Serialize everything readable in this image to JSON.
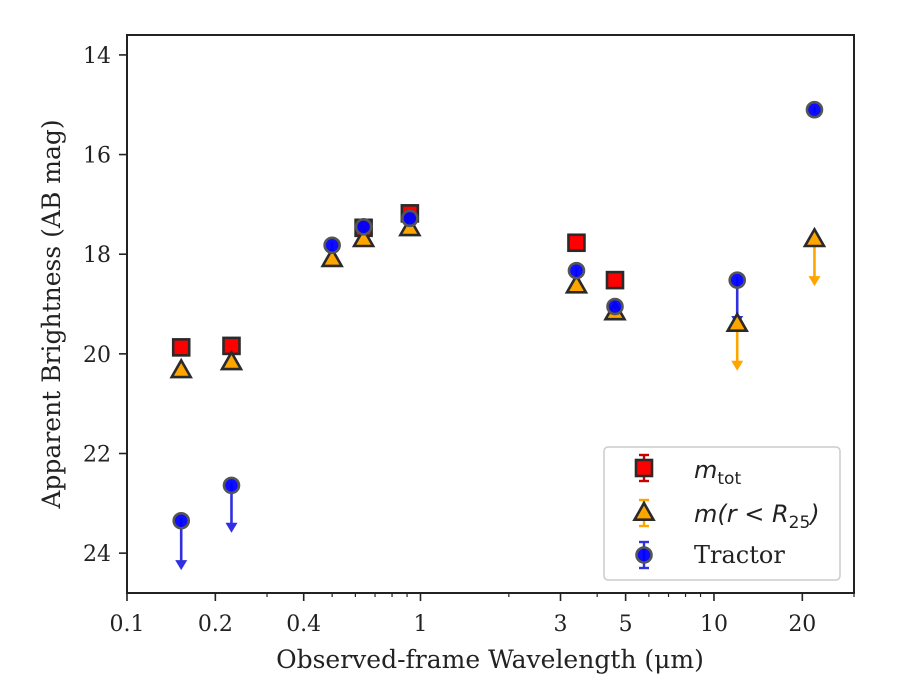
{
  "chart_data": {
    "type": "scatter",
    "xlabel": "Observed-frame Wavelength (μm)",
    "ylabel": "Apparent Brightness (AB mag)",
    "xscale": "log",
    "yinverted": true,
    "xlim": [
      0.1,
      30
    ],
    "ylim": [
      24.8,
      13.6
    ],
    "xticks": [
      {
        "value": 0.1,
        "label": "0.1"
      },
      {
        "value": 0.2,
        "label": "0.2"
      },
      {
        "value": 0.4,
        "label": "0.4"
      },
      {
        "value": 1,
        "label": "1"
      },
      {
        "value": 3,
        "label": "3"
      },
      {
        "value": 5,
        "label": "5"
      },
      {
        "value": 10,
        "label": "10"
      },
      {
        "value": 20,
        "label": "20"
      }
    ],
    "yticks": [
      {
        "value": 14,
        "label": "14"
      },
      {
        "value": 16,
        "label": "16"
      },
      {
        "value": 18,
        "label": "18"
      },
      {
        "value": 20,
        "label": "20"
      },
      {
        "value": 22,
        "label": "22"
      },
      {
        "value": 24,
        "label": "24"
      }
    ],
    "grid": false,
    "legend_position": "lower-right",
    "series": [
      {
        "name": "m_tot",
        "legend_main": "m",
        "legend_sub": "tot",
        "marker": "square",
        "face_color": "#ff0000",
        "err_color": "#cc0000",
        "points": [
          {
            "x": 0.153,
            "y": 19.87
          },
          {
            "x": 0.227,
            "y": 19.84
          },
          {
            "x": 0.64,
            "y": 17.47
          },
          {
            "x": 0.92,
            "y": 17.18
          },
          {
            "x": 3.4,
            "y": 17.77
          },
          {
            "x": 4.6,
            "y": 18.52
          }
        ]
      },
      {
        "name": "m(r < R25)",
        "legend_text": "m(r < R",
        "legend_sub": "25",
        "legend_close": ")",
        "marker": "triangle",
        "face_color": "#ffa500",
        "err_color": "#ffa500",
        "points": [
          {
            "x": 0.153,
            "y": 20.33
          },
          {
            "x": 0.227,
            "y": 20.17
          },
          {
            "x": 0.5,
            "y": 18.1
          },
          {
            "x": 0.64,
            "y": 17.7
          },
          {
            "x": 0.92,
            "y": 17.48
          },
          {
            "x": 3.4,
            "y": 18.63
          },
          {
            "x": 4.6,
            "y": 19.17
          },
          {
            "x": 12.0,
            "y": 19.4,
            "upper_limit_to": 20.3
          },
          {
            "x": 22.0,
            "y": 17.7,
            "upper_limit_to": 18.6
          }
        ]
      },
      {
        "name": "Tractor",
        "marker": "circle",
        "face_color": "#0000ff",
        "err_color": "#3030e0",
        "points": [
          {
            "x": 0.153,
            "y": 23.35,
            "upper_limit_to": 24.3
          },
          {
            "x": 0.227,
            "y": 22.64,
            "upper_limit_to": 23.55
          },
          {
            "x": 0.5,
            "y": 17.82
          },
          {
            "x": 0.64,
            "y": 17.45
          },
          {
            "x": 0.92,
            "y": 17.28
          },
          {
            "x": 3.4,
            "y": 18.33
          },
          {
            "x": 4.6,
            "y": 19.05
          },
          {
            "x": 12.0,
            "y": 18.52,
            "upper_limit_to": 19.4
          },
          {
            "x": 22.0,
            "y": 15.1
          }
        ]
      }
    ]
  }
}
